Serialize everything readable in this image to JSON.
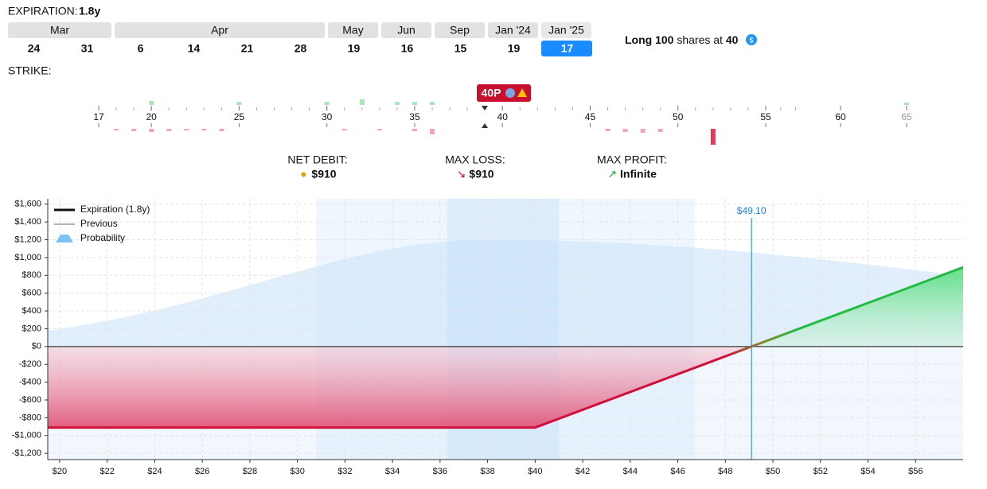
{
  "expiration": {
    "label": "EXPIRATION:",
    "value": "1.8y",
    "months": [
      "Mar",
      "Apr",
      "May",
      "Jun",
      "Sep",
      "Jan '24",
      "Jan '25"
    ],
    "dates": [
      "24",
      "31",
      "6",
      "14",
      "21",
      "28",
      "19",
      "16",
      "15",
      "19",
      "17"
    ]
  },
  "position": {
    "text_before": "Long",
    "quantity": "100",
    "text_mid": "shares at",
    "price": "40"
  },
  "strike": {
    "label": "STRIKE:",
    "ticks": [
      17,
      20,
      25,
      30,
      35,
      40,
      45,
      50,
      55,
      60,
      65
    ],
    "selected": "40P"
  },
  "stats": [
    {
      "label": "NET DEBIT:",
      "value": "$910"
    },
    {
      "label": "MAX LOSS:",
      "value": "$910"
    },
    {
      "label": "MAX PROFIT:",
      "value": "Infinite"
    }
  ],
  "chart_data": {
    "type": "line",
    "xlim": [
      19.5,
      58
    ],
    "ylim": [
      -1270,
      1660
    ],
    "xticks": [
      {
        "value": 20,
        "label": "$20"
      },
      {
        "value": 22,
        "label": "$22"
      },
      {
        "value": 24,
        "label": "$24"
      },
      {
        "value": 26,
        "label": "$26"
      },
      {
        "value": 28,
        "label": "$28"
      },
      {
        "value": 30,
        "label": "$30"
      },
      {
        "value": 32,
        "label": "$32"
      },
      {
        "value": 34,
        "label": "$34"
      },
      {
        "value": 36,
        "label": "$36"
      },
      {
        "value": 38,
        "label": "$38"
      },
      {
        "value": 40,
        "label": "$40"
      },
      {
        "value": 42,
        "label": "$42"
      },
      {
        "value": 44,
        "label": "$44"
      },
      {
        "value": 46,
        "label": "$46"
      },
      {
        "value": 48,
        "label": "$48"
      },
      {
        "value": 50,
        "label": "$50"
      },
      {
        "value": 52,
        "label": "$52"
      },
      {
        "value": 54,
        "label": "$54"
      },
      {
        "value": 56,
        "label": "$56"
      }
    ],
    "yticks": [
      {
        "value": -1200,
        "label": "-$1,200"
      },
      {
        "value": -1000,
        "label": "-$1,000"
      },
      {
        "value": -800,
        "label": "-$800"
      },
      {
        "value": -600,
        "label": "-$600"
      },
      {
        "value": -400,
        "label": "-$400"
      },
      {
        "value": -200,
        "label": "-$200"
      },
      {
        "value": 0,
        "label": "$0"
      },
      {
        "value": 200,
        "label": "$200"
      },
      {
        "value": 400,
        "label": "$400"
      },
      {
        "value": 600,
        "label": "$600"
      },
      {
        "value": 800,
        "label": "$800"
      },
      {
        "value": 1000,
        "label": "$1,000"
      },
      {
        "value": 1200,
        "label": "$1,200"
      },
      {
        "value": 1400,
        "label": "$1,400"
      },
      {
        "value": 1600,
        "label": "$1,600"
      }
    ],
    "grid": true,
    "series": [
      {
        "name": "Expiration (1.8y)",
        "color": "#d0103a",
        "x": [
          19.5,
          40,
          49.1,
          58
        ],
        "values": [
          -910,
          -910,
          0,
          890
        ]
      }
    ],
    "legend_items": [
      "Previous",
      "Probability"
    ],
    "marker": {
      "value": 49.1,
      "label": "$49.10"
    }
  }
}
